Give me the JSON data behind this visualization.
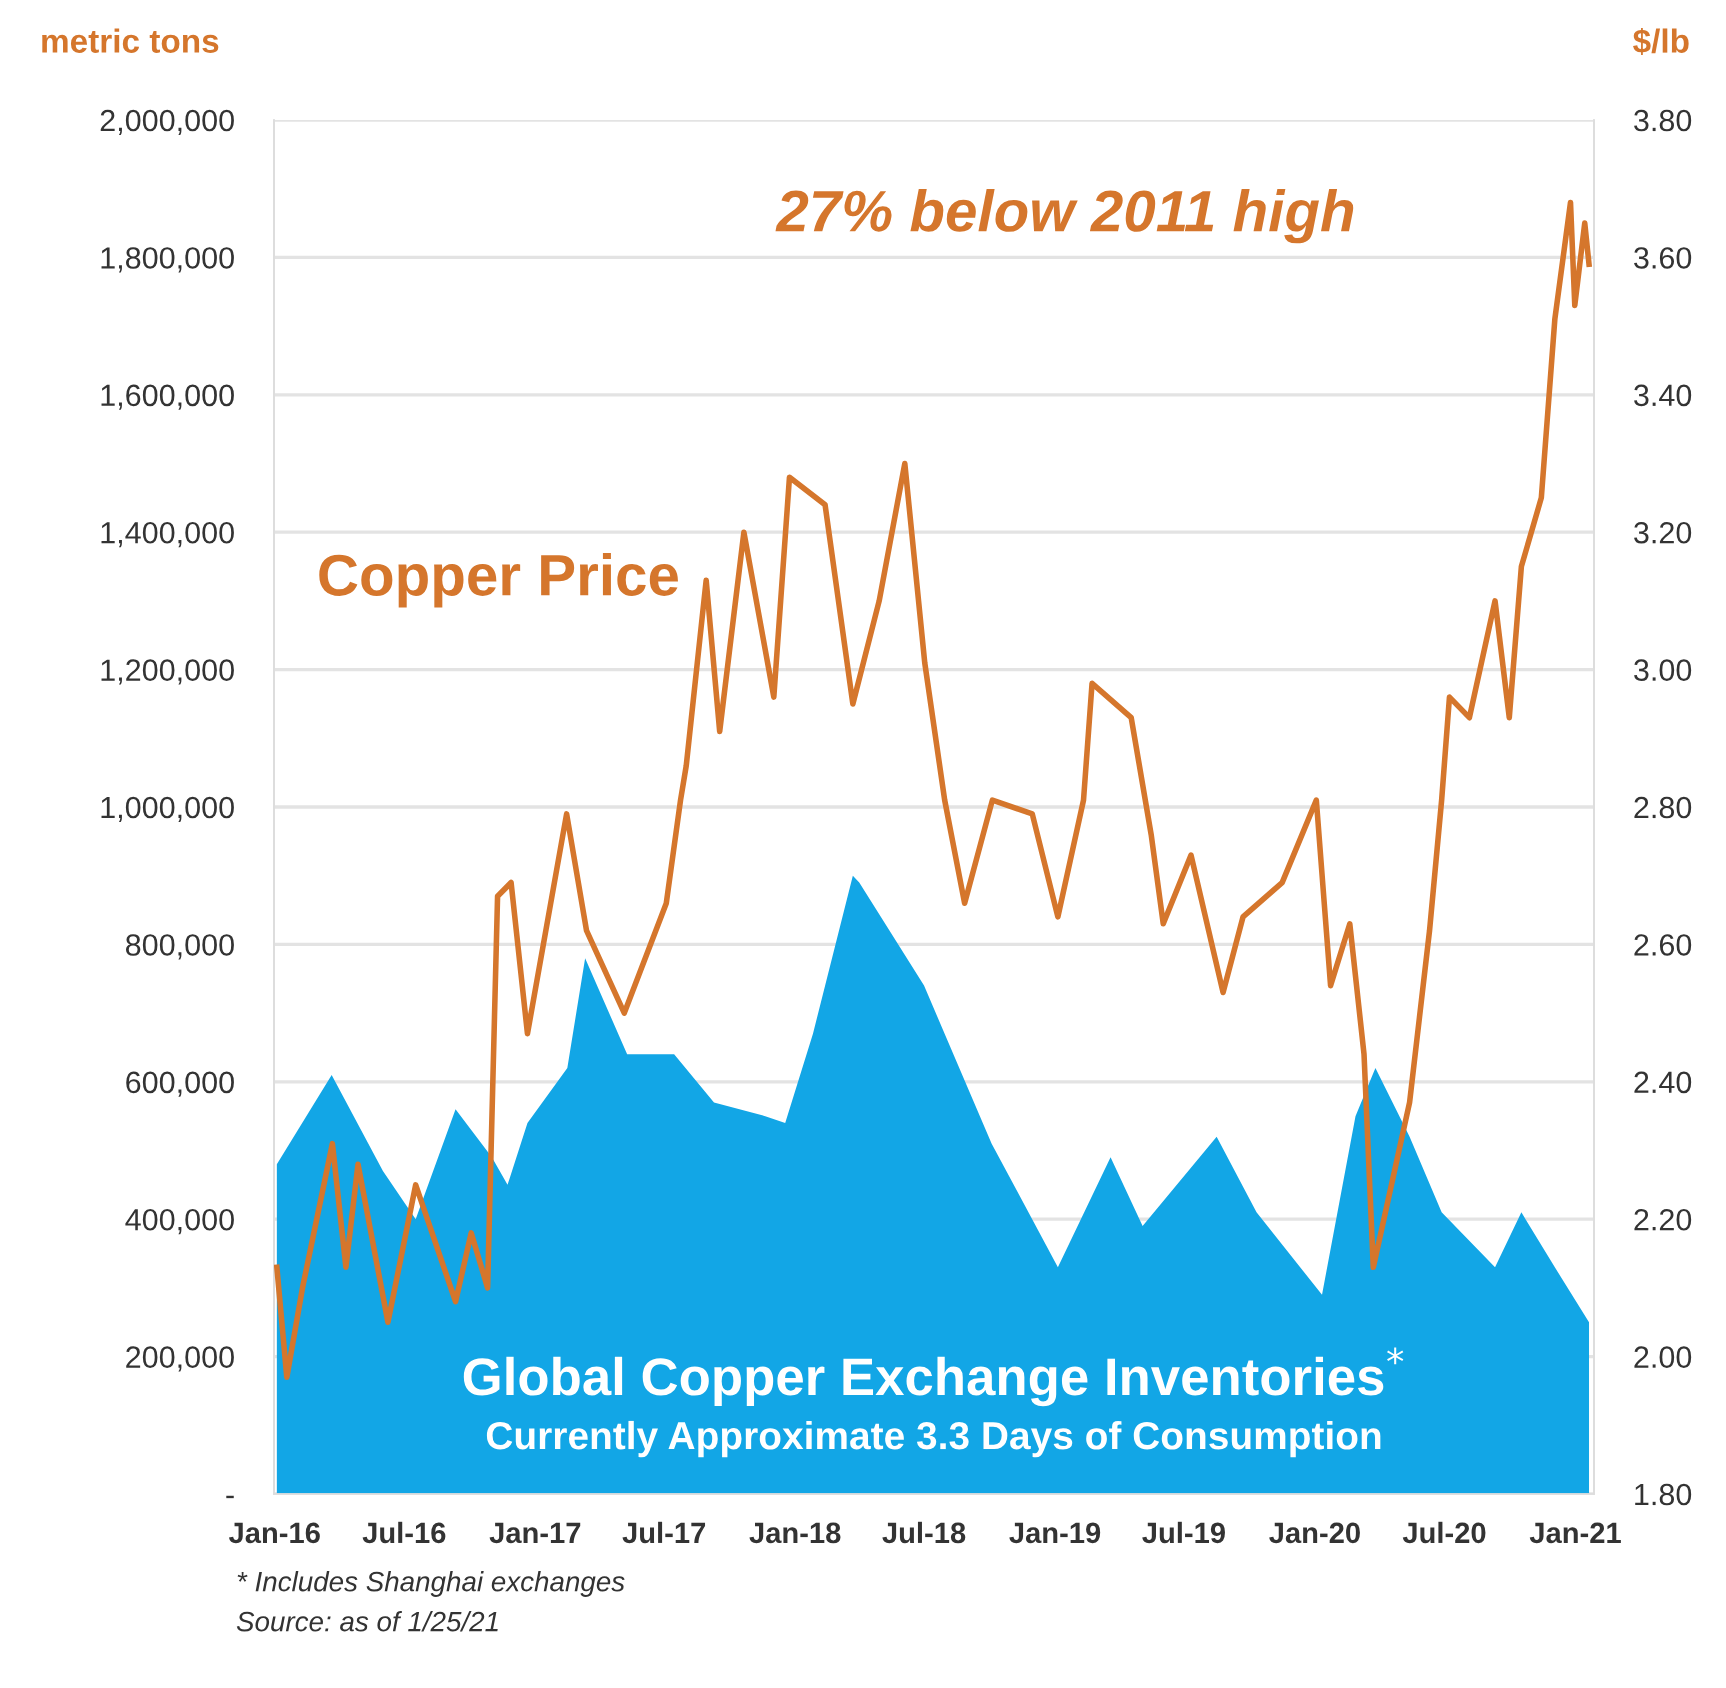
{
  "chart_data": {
    "type": "area",
    "ylabel": "metric tons",
    "y2label": "$/lb",
    "xlim": [
      "2015-12-31",
      "2021-01-27"
    ],
    "xticks": [
      {
        "value": "2016-01-01",
        "label": "Jan-16"
      },
      {
        "value": "2016-07-01",
        "label": "Jul-16"
      },
      {
        "value": "2017-01-01",
        "label": "Jan-17"
      },
      {
        "value": "2017-07-01",
        "label": "Jul-17"
      },
      {
        "value": "2018-01-01",
        "label": "Jan-18"
      },
      {
        "value": "2018-07-01",
        "label": "Jul-18"
      },
      {
        "value": "2019-01-01",
        "label": "Jan-19"
      },
      {
        "value": "2019-07-01",
        "label": "Jul-19"
      },
      {
        "value": "2020-01-01",
        "label": "Jan-20"
      },
      {
        "value": "2020-07-01",
        "label": "Jul-20"
      },
      {
        "value": "2021-01-01",
        "label": "Jan-21"
      }
    ],
    "ylim": [
      0,
      2000000
    ],
    "yticks": [
      {
        "value": 0,
        "label": "-"
      },
      {
        "value": 200000,
        "label": "200,000"
      },
      {
        "value": 400000,
        "label": "400,000"
      },
      {
        "value": 600000,
        "label": "600,000"
      },
      {
        "value": 800000,
        "label": "800,000"
      },
      {
        "value": 1000000,
        "label": "1,000,000"
      },
      {
        "value": 1200000,
        "label": "1,200,000"
      },
      {
        "value": 1400000,
        "label": "1,400,000"
      },
      {
        "value": 1600000,
        "label": "1,600,000"
      },
      {
        "value": 1800000,
        "label": "1,800,000"
      },
      {
        "value": 2000000,
        "label": "2,000,000"
      }
    ],
    "y2lim": [
      1.8,
      3.8
    ],
    "y2ticks": [
      {
        "value": 1.8,
        "label": "1.80"
      },
      {
        "value": 2.0,
        "label": "2.00"
      },
      {
        "value": 2.2,
        "label": "2.20"
      },
      {
        "value": 2.4,
        "label": "2.40"
      },
      {
        "value": 2.6,
        "label": "2.60"
      },
      {
        "value": 2.8,
        "label": "2.80"
      },
      {
        "value": 3.0,
        "label": "3.00"
      },
      {
        "value": 3.2,
        "label": "3.20"
      },
      {
        "value": 3.4,
        "label": "3.40"
      },
      {
        "value": 3.6,
        "label": "3.60"
      },
      {
        "value": 3.8,
        "label": "3.80"
      }
    ],
    "grid": "y",
    "legend": false,
    "series": [
      {
        "name": "Global Copper Exchange Inventories$^{*}$",
        "color": "#12a6e6",
        "x": [
          "2016-01-04",
          "2016-03-21",
          "2016-06-01",
          "2016-07-17",
          "2016-09-11",
          "2016-11-01",
          "2016-11-23",
          "2016-12-21",
          "2017-02-15",
          "2017-03-12",
          "2017-05-10",
          "2017-07-15",
          "2017-09-09",
          "2017-11-20",
          "2017-12-18",
          "2018-01-26",
          "2018-03-23",
          "2018-04-01",
          "2018-07-01",
          "2018-10-04",
          "2019-01-05",
          "2019-03-20",
          "2019-05-04",
          "2019-08-16",
          "2019-10-11",
          "2020-01-11",
          "2020-02-27",
          "2020-03-26",
          "2020-05-13",
          "2020-06-27",
          "2020-09-10",
          "2020-10-17",
          "2020-12-03",
          "2021-01-20"
        ],
        "values": [
          480000,
          610000,
          470000,
          400000,
          560000,
          490000,
          450000,
          540000,
          620000,
          780000,
          640000,
          640000,
          570000,
          550000,
          540000,
          670000,
          900000,
          890000,
          740000,
          510000,
          330000,
          490000,
          390000,
          520000,
          410000,
          290000,
          550000,
          620000,
          520000,
          410000,
          330000,
          410000,
          330000,
          250000
        ]
      },
      {
        "name": "Copper Price",
        "type": "line",
        "axis": "y2",
        "color": "#d5762c",
        "x": [
          "2016-01-04",
          "2016-01-18",
          "2016-02-09",
          "2016-03-22",
          "2016-04-10",
          "2016-04-27",
          "2016-06-08",
          "2016-07-17",
          "2016-09-11",
          "2016-10-03",
          "2016-10-26",
          "2016-11-09",
          "2016-11-28",
          "2016-12-21",
          "2017-02-14",
          "2017-03-14",
          "2017-05-06",
          "2017-07-04",
          "2017-07-24",
          "2017-08-01",
          "2017-08-29",
          "2017-09-17",
          "2017-10-21",
          "2017-12-02",
          "2017-12-24",
          "2018-02-12",
          "2018-03-23",
          "2018-04-29",
          "2018-06-04",
          "2018-07-02",
          "2018-07-30",
          "2018-08-27",
          "2018-10-05",
          "2018-11-30",
          "2019-01-05",
          "2019-02-10",
          "2019-02-22",
          "2019-04-18",
          "2019-05-16",
          "2019-06-02",
          "2019-07-11",
          "2019-08-25",
          "2019-09-22",
          "2019-11-16",
          "2020-01-03",
          "2020-01-23",
          "2020-02-19",
          "2020-03-10",
          "2020-03-23",
          "2020-05-13",
          "2020-06-10",
          "2020-06-27",
          "2020-07-08",
          "2020-08-05",
          "2020-09-10",
          "2020-09-30",
          "2020-10-17",
          "2020-11-14",
          "2020-12-03",
          "2020-12-25",
          "2020-12-31",
          "2021-01-14",
          "2021-01-20"
        ],
        "values": [
          2.13,
          1.97,
          2.1,
          2.31,
          2.13,
          2.28,
          2.05,
          2.25,
          2.08,
          2.18,
          2.1,
          2.67,
          2.69,
          2.47,
          2.79,
          2.62,
          2.5,
          2.66,
          2.81,
          2.86,
          3.13,
          2.91,
          3.2,
          2.96,
          3.28,
          3.24,
          2.95,
          3.1,
          3.3,
          3.01,
          2.81,
          2.66,
          2.81,
          2.79,
          2.64,
          2.81,
          2.98,
          2.93,
          2.76,
          2.63,
          2.73,
          2.53,
          2.64,
          2.69,
          2.81,
          2.54,
          2.63,
          2.44,
          2.13,
          2.37,
          2.62,
          2.81,
          2.96,
          2.93,
          3.1,
          2.93,
          3.15,
          3.25,
          3.51,
          3.68,
          3.53,
          3.65,
          3.59
        ]
      }
    ],
    "annotations": [
      "Currently Approximate 3.3 Days of Consumption",
      "27% below 2011 high",
      "* Includes Shanghai exchanges",
      "Source: as of 1/25/21"
    ]
  }
}
